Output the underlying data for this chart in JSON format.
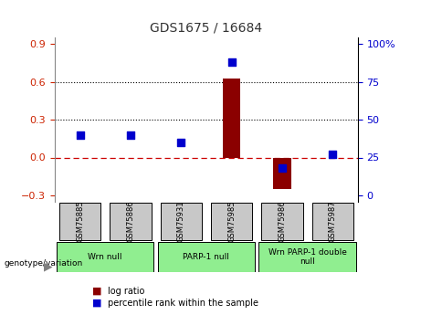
{
  "title": "GDS1675 / 16684",
  "samples": [
    "GSM75885",
    "GSM75886",
    "GSM75931",
    "GSM75985",
    "GSM75986",
    "GSM75987"
  ],
  "log_ratio": [
    0.0,
    0.0,
    0.0,
    0.63,
    -0.25,
    0.0
  ],
  "percentile_rank": [
    40,
    40,
    35,
    88,
    18,
    27
  ],
  "groups": [
    {
      "label": "Wrn null",
      "start": 0,
      "end": 2,
      "color": "#90EE90"
    },
    {
      "label": "PARP-1 null",
      "start": 2,
      "end": 4,
      "color": "#90EE90"
    },
    {
      "label": "Wrn PARP-1 double\nnull",
      "start": 4,
      "end": 6,
      "color": "#90EE90"
    }
  ],
  "ylim_left": [
    -0.35,
    0.95
  ],
  "yticks_left": [
    -0.3,
    0.0,
    0.3,
    0.6,
    0.9
  ],
  "yticks_right": [
    0,
    25,
    50,
    75,
    100
  ],
  "hline_y": [
    0.3,
    0.6
  ],
  "zero_line_y": 0.0,
  "bar_color": "#8B0000",
  "dot_color": "#0000CD",
  "zero_line_color": "#CC0000",
  "title_color": "#333333",
  "left_tick_color": "#CC2200",
  "right_tick_color": "#0000CD",
  "grid_color": "#000000",
  "sample_box_color": "#C8C8C8",
  "legend_log_color": "#8B0000",
  "legend_dot_color": "#0000CD"
}
